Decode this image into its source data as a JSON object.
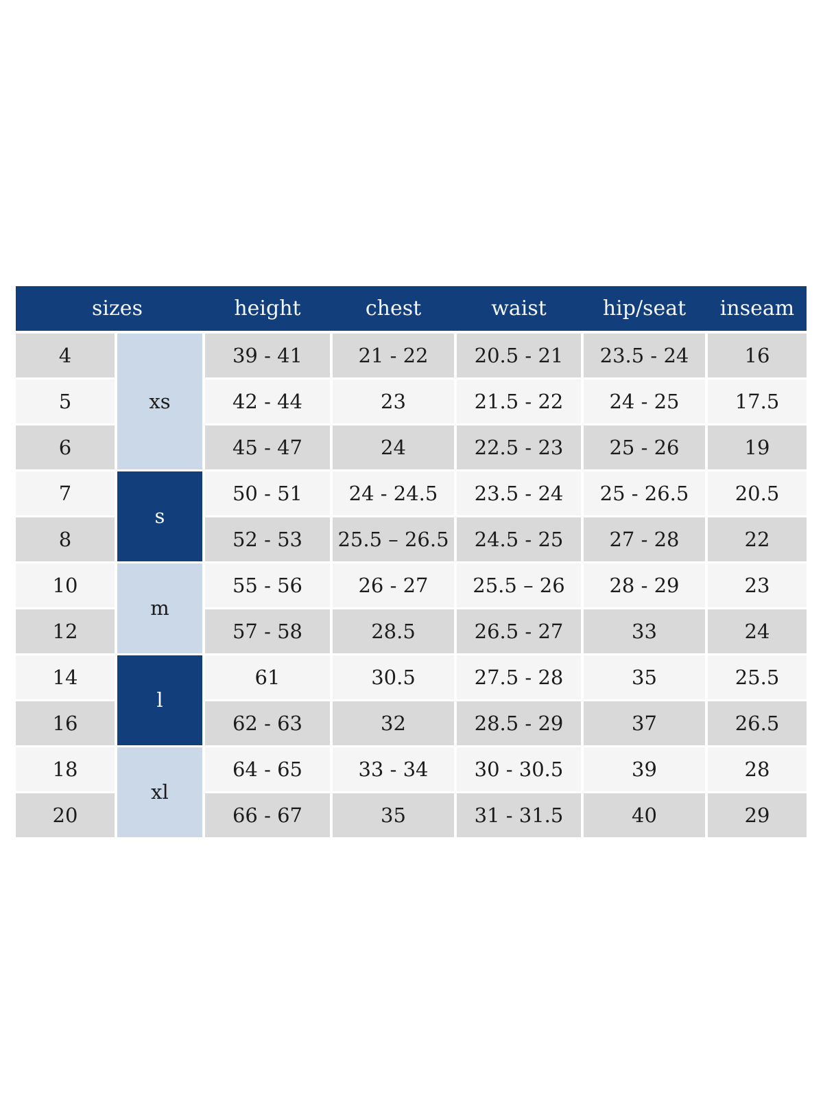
{
  "table": {
    "header": [
      "sizes",
      "height",
      "chest",
      "waist",
      "hip/seat",
      "inseam"
    ],
    "groups": [
      {
        "label": "xs",
        "rows": 3,
        "style": "light"
      },
      {
        "label": "s",
        "rows": 2,
        "style": "dark"
      },
      {
        "label": "m",
        "rows": 2,
        "style": "light"
      },
      {
        "label": "l",
        "rows": 2,
        "style": "dark"
      },
      {
        "label": "xl",
        "rows": 2,
        "style": "light"
      }
    ],
    "rows": [
      {
        "size": "4",
        "height": "39 - 41",
        "chest": "21 - 22",
        "waist": "20.5 - 21",
        "hip_seat": "23.5 - 24",
        "inseam": "16"
      },
      {
        "size": "5",
        "height": "42 - 44",
        "chest": "23",
        "waist": "21.5 - 22",
        "hip_seat": "24 - 25",
        "inseam": "17.5"
      },
      {
        "size": "6",
        "height": "45 - 47",
        "chest": "24",
        "waist": "22.5 - 23",
        "hip_seat": "25 - 26",
        "inseam": "19"
      },
      {
        "size": "7",
        "height": "50 - 51",
        "chest": "24 - 24.5",
        "waist": "23.5 - 24",
        "hip_seat": "25 - 26.5",
        "inseam": "20.5"
      },
      {
        "size": "8",
        "height": "52 - 53",
        "chest": "25.5 – 26.5",
        "waist": "24.5 - 25",
        "hip_seat": "27 - 28",
        "inseam": "22"
      },
      {
        "size": "10",
        "height": "55 - 56",
        "chest": "26 - 27",
        "waist": "25.5 – 26",
        "hip_seat": "28 - 29",
        "inseam": "23"
      },
      {
        "size": "12",
        "height": "57 - 58",
        "chest": "28.5",
        "waist": "26.5 - 27",
        "hip_seat": "33",
        "inseam": "24"
      },
      {
        "size": "14",
        "height": "61",
        "chest": "30.5",
        "waist": "27.5 - 28",
        "hip_seat": "35",
        "inseam": "25.5"
      },
      {
        "size": "16",
        "height": "62 - 63",
        "chest": "32",
        "waist": "28.5 - 29",
        "hip_seat": "37",
        "inseam": "26.5"
      },
      {
        "size": "18",
        "height": "64 - 65",
        "chest": "33 - 34",
        "waist": "30 - 30.5",
        "hip_seat": "39",
        "inseam": "28"
      },
      {
        "size": "20",
        "height": "66 - 67",
        "chest": "35",
        "waist": "31 - 31.5",
        "hip_seat": "40",
        "inseam": "29"
      }
    ],
    "colors": {
      "header_bg": "#123e7c",
      "header_text": "#f3f6fa",
      "group_light_bg": "#cbd8e7",
      "group_dark_bg": "#123e7c",
      "row_gray": "#d9d9d9",
      "row_light": "#f5f5f5",
      "body_text": "#1c1c1c",
      "page_bg": "#ffffff"
    }
  }
}
